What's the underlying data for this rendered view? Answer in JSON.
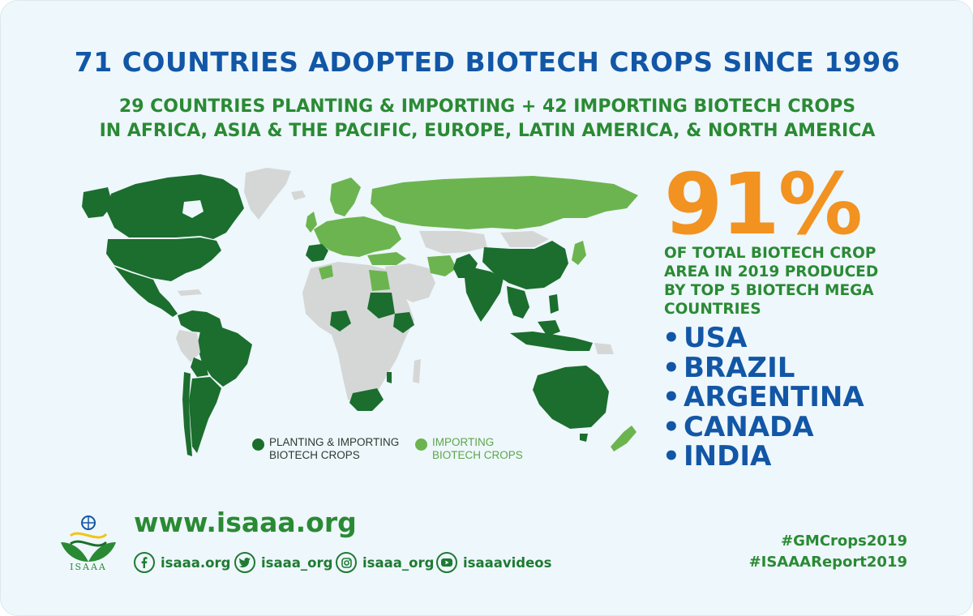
{
  "header": {
    "title": "71 COUNTRIES ADOPTED BIOTECH CROPS SINCE 1996",
    "subtitle_line1": "29 COUNTRIES PLANTING & IMPORTING + 42 IMPORTING BIOTECH CROPS",
    "subtitle_line2": "IN AFRICA, ASIA & THE PACIFIC, EUROPE, LATIN AMERICA, & NORTH AMERICA"
  },
  "colors": {
    "title_blue": "#1256a6",
    "green_text": "#2a8a34",
    "planting_importing": "#1b6e2e",
    "importing": "#6cb450",
    "no_adoption": "#d5d7d7",
    "accent_orange": "#f29221",
    "background": "#eef7fb"
  },
  "map": {
    "legend": [
      {
        "label": "PLANTING & IMPORTING\nBIOTECH CROPS",
        "color": "#1b6e2e",
        "text_color": "#2f3a33"
      },
      {
        "label": "IMPORTING\nBIOTECH CROPS",
        "color": "#6cb450",
        "text_color": "#5ca64a"
      }
    ]
  },
  "stat": {
    "percent": "91%",
    "line1": "OF TOTAL BIOTECH CROP",
    "line2": "AREA IN 2019 PRODUCED",
    "line3": "BY TOP 5 BIOTECH MEGA",
    "line4": "COUNTRIES"
  },
  "mega_countries": [
    "USA",
    "BRAZIL",
    "ARGENTINA",
    "CANADA",
    "INDIA"
  ],
  "footer": {
    "logo_text": "ISAAA",
    "website": "www.isaaa.org",
    "social": [
      {
        "icon": "facebook-icon",
        "label": "isaaa.org"
      },
      {
        "icon": "twitter-icon",
        "label": "isaaa_org"
      },
      {
        "icon": "instagram-icon",
        "label": "isaaa_org"
      },
      {
        "icon": "youtube-icon",
        "label": "isaaavideos"
      }
    ],
    "hashtag1": "#GMCrops2019",
    "hashtag2": "#ISAAAReport2019"
  }
}
